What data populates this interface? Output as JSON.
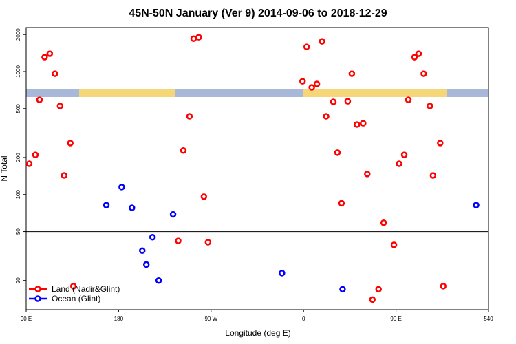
{
  "chart_data": {
    "type": "scatter",
    "title": "45N-50N January (Ver 9)   2014-09-06 to 2018-12-29",
    "x_label": "Longitude (deg E)",
    "y_label": "N Total",
    "xlim": [
      90,
      540
    ],
    "xticks": [
      {
        "value": 90,
        "label": "90 E"
      },
      180,
      {
        "value": 270,
        "label": "90 W"
      },
      {
        "value": 360,
        "label": "0"
      },
      {
        "value": 450,
        "label": "90 E"
      },
      540
    ],
    "ylim": [
      11.6,
      2280
    ],
    "y_log": true,
    "yticks": [
      20,
      50,
      100,
      200,
      500,
      1000,
      2000
    ],
    "reference_line": 50,
    "legend_position": "bottom-left",
    "series": [
      {
        "name": "Land (Nadir&Glint)",
        "color": "#ff0000",
        "x": [
          93,
          99,
          103,
          108,
          113,
          118,
          123,
          127,
          133,
          136,
          238,
          243,
          249,
          253,
          258,
          263,
          267,
          359,
          363,
          368,
          373,
          378,
          382,
          389,
          393,
          397,
          403,
          407,
          412,
          418,
          422,
          427,
          433,
          438,
          448,
          453,
          458,
          462,
          468,
          472,
          477,
          483,
          486,
          493,
          496
        ],
        "values": [
          178,
          210,
          589,
          1309,
          1396,
          961,
          525,
          143,
          262,
          18,
          42,
          228,
          433,
          1850,
          1900,
          96,
          41,
          834,
          1586,
          743,
          793,
          1758,
          433,
          567,
          219,
          85,
          574,
          961,
          371,
          380,
          147,
          14,
          17,
          59,
          39,
          178,
          210,
          589,
          1309,
          1396,
          961,
          525,
          143,
          262,
          18
        ]
      },
      {
        "name": "Ocean (Glint)",
        "color": "#0000ff",
        "x": [
          168,
          183,
          193,
          203,
          207,
          213,
          219,
          233,
          339,
          398,
          528
        ],
        "values": [
          82,
          115,
          78,
          35,
          27,
          45,
          20,
          69,
          23,
          17,
          82
        ]
      }
    ]
  }
}
